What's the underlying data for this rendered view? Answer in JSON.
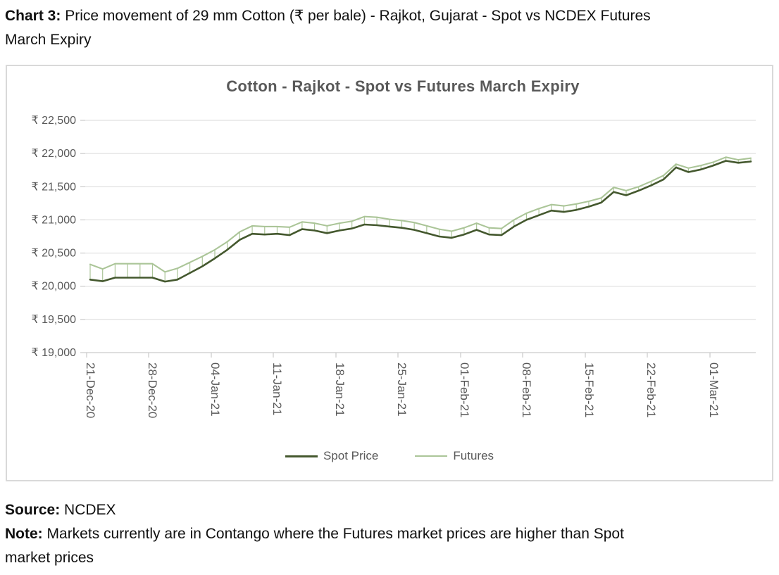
{
  "header": {
    "label": "Chart 3:",
    "line1": "Price movement of 29 mm Cotton (₹ per bale) - Rajkot, Gujarat - Spot vs NCDEX Futures",
    "line2": "March Expiry"
  },
  "chart_data": {
    "type": "line",
    "title": "Cotton - Rajkot - Spot vs Futures March Expiry",
    "x_tick_labels": [
      "21-Dec-20",
      "28-Dec-20",
      "04-Jan-21",
      "11-Jan-21",
      "18-Jan-21",
      "25-Jan-21",
      "01-Feb-21",
      "08-Feb-21",
      "15-Feb-21",
      "22-Feb-21",
      "01-Mar-21"
    ],
    "x_tick_indices": [
      0,
      5,
      10,
      15,
      20,
      25,
      30,
      35,
      40,
      45,
      50
    ],
    "y_ticks": [
      19000,
      19500,
      20000,
      20500,
      21000,
      21500,
      22000,
      22500
    ],
    "y_tick_prefix": "₹ ",
    "ylim": [
      19000,
      22500
    ],
    "grid": true,
    "high_low_lines": true,
    "legend_position": "bottom",
    "text_color": "#595959",
    "grid_color": "#d9d9d9",
    "axis_color": "#bfbfbf",
    "series": [
      {
        "name": "Spot Price",
        "color": "#44582e",
        "values": [
          20100,
          20075,
          20130,
          20130,
          20130,
          20130,
          20070,
          20100,
          20200,
          20300,
          20420,
          20550,
          20700,
          20790,
          20780,
          20790,
          20770,
          20860,
          20840,
          20800,
          20840,
          20870,
          20930,
          20920,
          20900,
          20880,
          20850,
          20800,
          20750,
          20730,
          20780,
          20850,
          20780,
          20770,
          20900,
          21000,
          21070,
          21140,
          21120,
          21150,
          21200,
          21260,
          21420,
          21370,
          21440,
          21520,
          21610,
          21790,
          21720,
          21760,
          21820,
          21890,
          21860,
          21880
        ]
      },
      {
        "name": "Futures",
        "color": "#abc598",
        "values": [
          20330,
          20260,
          20340,
          20340,
          20340,
          20340,
          20215,
          20270,
          20360,
          20450,
          20550,
          20670,
          20820,
          20910,
          20900,
          20900,
          20890,
          20970,
          20950,
          20910,
          20950,
          20980,
          21050,
          21040,
          21010,
          20990,
          20960,
          20910,
          20860,
          20830,
          20880,
          20950,
          20880,
          20870,
          21000,
          21100,
          21170,
          21230,
          21210,
          21240,
          21280,
          21330,
          21490,
          21440,
          21500,
          21580,
          21670,
          21840,
          21780,
          21820,
          21870,
          21945,
          21905,
          21930
        ]
      }
    ]
  },
  "footer": {
    "source_label": "Source:",
    "source_value": "NCDEX",
    "note_label": "Note:",
    "note_line1": "Markets currently are in Contango where the Futures market prices are higher than Spot",
    "note_line2": "market prices"
  }
}
